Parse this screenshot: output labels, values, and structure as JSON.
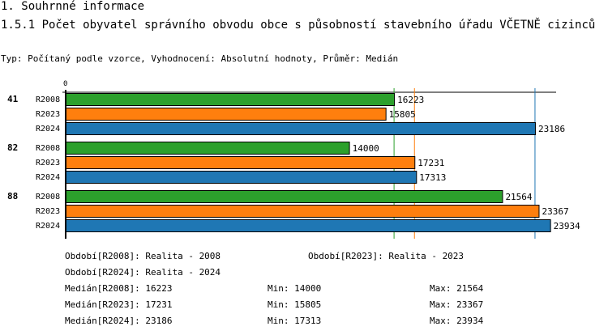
{
  "header": {
    "section": "1. Souhrnné informace",
    "title": "1.5.1 Počet obyvatel správního obvodu obce s působností stavebního úřadu VČETNĚ cizinců",
    "subtitle": "Typ: Počítaný podle vzorce, Vyhodnocení: Absolutní hodnoty, Průměr: Medián"
  },
  "chart_data": {
    "type": "bar",
    "orientation": "horizontal",
    "x_tick": "0",
    "groups": [
      "41",
      "82",
      "88"
    ],
    "series": [
      {
        "name": "R2008",
        "color": "#2ca02c",
        "values": [
          16223,
          14000,
          21564
        ]
      },
      {
        "name": "R2023",
        "color": "#ff7f0e",
        "values": [
          15805,
          17231,
          23367
        ]
      },
      {
        "name": "R2024",
        "color": "#1f77b4",
        "values": [
          23186,
          17313,
          23934
        ]
      }
    ],
    "medians": [
      16223,
      17231,
      23186
    ]
  },
  "legend": {
    "l1": "Období[R2008]: Realita - 2008",
    "l2": "Období[R2023]: Realita - 2023",
    "l3": "Období[R2024]: Realita - 2024",
    "rows": [
      [
        "Medián[R2008]: 16223",
        "Min: 14000",
        "Max: 21564"
      ],
      [
        "Medián[R2023]: 17231",
        "Min: 15805",
        "Max: 23367"
      ],
      [
        "Medián[R2024]: 23186",
        "Min: 17313",
        "Max: 23934"
      ]
    ]
  }
}
